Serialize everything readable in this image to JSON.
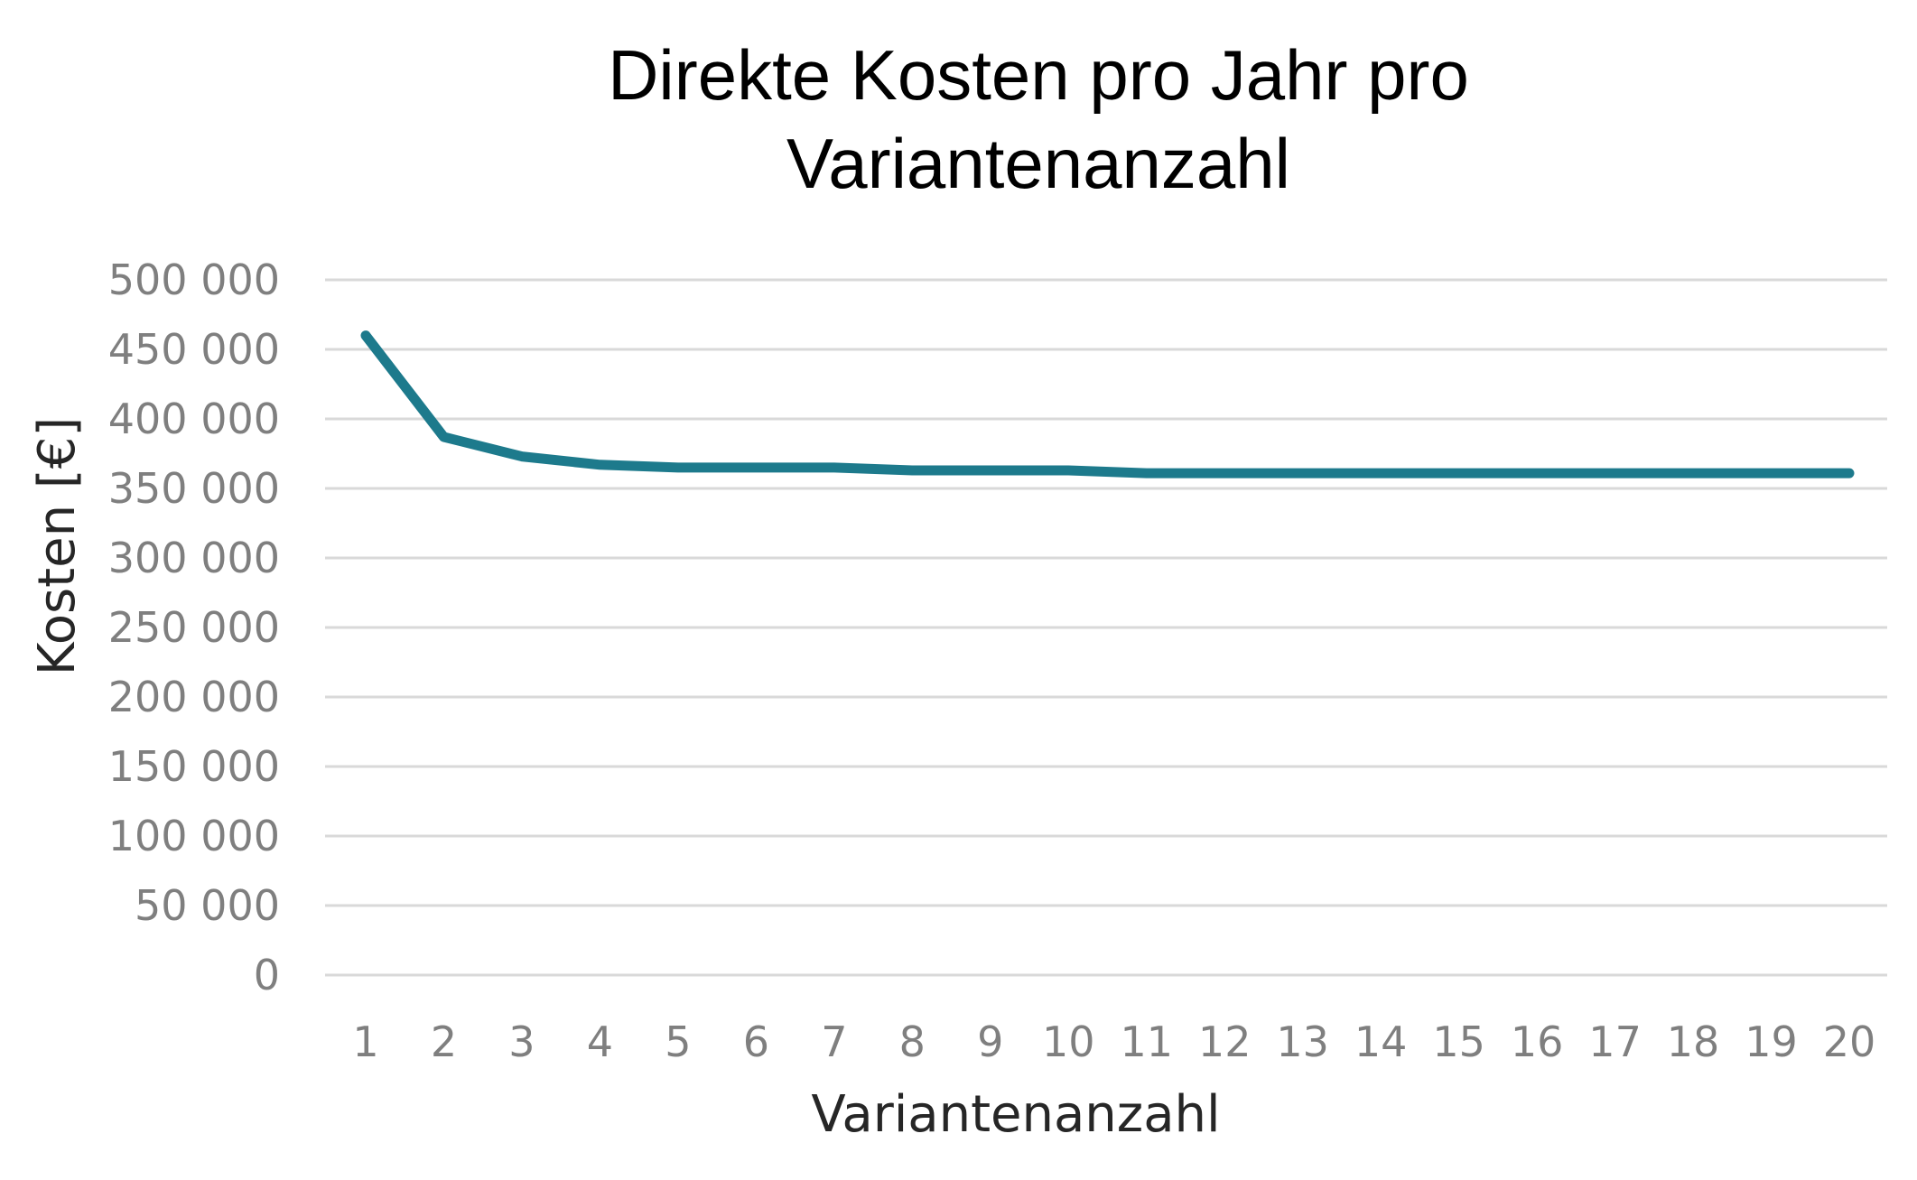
{
  "chart_data": {
    "type": "line",
    "title_lines": [
      "Direkte Kosten pro Jahr pro",
      "Variantenanzahl"
    ],
    "xlabel": "Variantenanzahl",
    "ylabel": "Kosten [€]",
    "categories": [
      "1",
      "2",
      "3",
      "4",
      "5",
      "6",
      "7",
      "8",
      "9",
      "10",
      "11",
      "12",
      "13",
      "14",
      "15",
      "16",
      "17",
      "18",
      "19",
      "20"
    ],
    "series": [
      {
        "values": [
          460000,
          387000,
          373000,
          367000,
          365000,
          365000,
          365000,
          363000,
          363000,
          363000,
          361000,
          361000,
          361000,
          361000,
          361000,
          361000,
          361000,
          361000,
          361000,
          361000
        ]
      }
    ],
    "ylim": [
      0,
      500000
    ],
    "yticks": [
      0,
      50000,
      100000,
      150000,
      200000,
      250000,
      300000,
      350000,
      400000,
      450000,
      500000
    ],
    "ytick_labels": [
      "0",
      "50 000",
      "100 000",
      "150 000",
      "200 000",
      "250 000",
      "300 000",
      "350 000",
      "400 000",
      "450 000",
      "500 000"
    ],
    "grid": true,
    "legend": "none",
    "line_color": "#1d7a8c",
    "grid_color": "#d9d9d9",
    "tick_color": "#7f7f7f"
  }
}
